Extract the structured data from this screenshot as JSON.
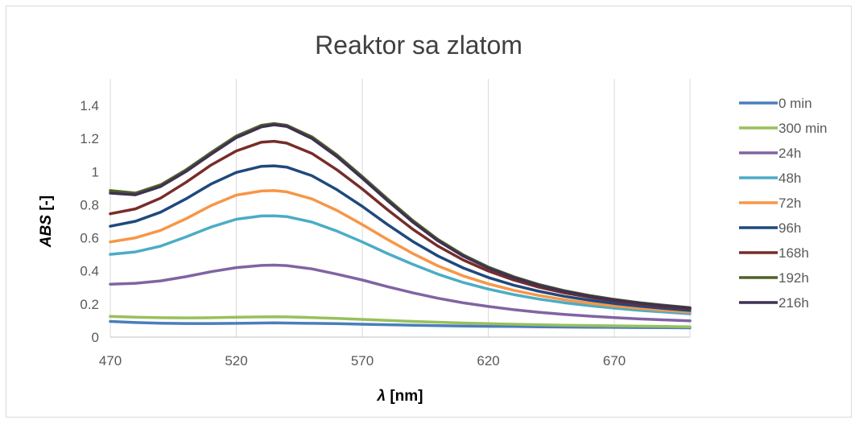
{
  "chart_data": {
    "type": "line",
    "title": "Reaktor sa zlatom",
    "xlabel_symbol": "λ",
    "xlabel_unit": " [nm]",
    "ylabel_symbol": "ABS",
    "ylabel_unit": " [-]",
    "xlim": [
      470,
      700
    ],
    "ylim": [
      0,
      1.4
    ],
    "x_ticks": [
      470,
      520,
      570,
      620,
      670
    ],
    "y_ticks": [
      0,
      0.2,
      0.4,
      0.6,
      0.8,
      1,
      1.2,
      1.4
    ],
    "y_tick_labels": [
      "0",
      "0.2",
      "0.4",
      "0.6",
      "0.8",
      "1",
      "1.2",
      "1.4"
    ],
    "grid": "vertical",
    "legend": "right",
    "x": [
      470,
      480,
      490,
      500,
      510,
      520,
      530,
      535,
      540,
      550,
      560,
      570,
      580,
      590,
      600,
      610,
      620,
      630,
      640,
      650,
      660,
      670,
      680,
      690,
      700
    ],
    "series": [
      {
        "name": "0 min",
        "color": "#4a7ebb",
        "values": [
          0.095,
          0.088,
          0.084,
          0.082,
          0.082,
          0.083,
          0.085,
          0.086,
          0.085,
          0.083,
          0.081,
          0.078,
          0.075,
          0.072,
          0.069,
          0.067,
          0.065,
          0.064,
          0.062,
          0.061,
          0.06,
          0.059,
          0.058,
          0.057,
          0.056
        ]
      },
      {
        "name": "300 min",
        "color": "#98c05c",
        "values": [
          0.125,
          0.12,
          0.117,
          0.116,
          0.117,
          0.12,
          0.122,
          0.123,
          0.122,
          0.118,
          0.113,
          0.107,
          0.101,
          0.095,
          0.09,
          0.085,
          0.081,
          0.078,
          0.075,
          0.072,
          0.07,
          0.068,
          0.066,
          0.064,
          0.062
        ]
      },
      {
        "name": "24h",
        "color": "#8064a2",
        "values": [
          0.32,
          0.325,
          0.34,
          0.365,
          0.395,
          0.42,
          0.433,
          0.435,
          0.432,
          0.412,
          0.38,
          0.345,
          0.305,
          0.268,
          0.235,
          0.207,
          0.185,
          0.166,
          0.15,
          0.137,
          0.127,
          0.118,
          0.11,
          0.104,
          0.098
        ]
      },
      {
        "name": "48h",
        "color": "#4bacc6",
        "values": [
          0.5,
          0.515,
          0.55,
          0.605,
          0.665,
          0.712,
          0.732,
          0.733,
          0.728,
          0.695,
          0.64,
          0.575,
          0.505,
          0.44,
          0.38,
          0.33,
          0.29,
          0.257,
          0.23,
          0.208,
          0.19,
          0.175,
          0.162,
          0.151,
          0.141
        ]
      },
      {
        "name": "72h",
        "color": "#f79646",
        "values": [
          0.575,
          0.6,
          0.645,
          0.715,
          0.795,
          0.858,
          0.883,
          0.885,
          0.878,
          0.835,
          0.765,
          0.68,
          0.59,
          0.505,
          0.43,
          0.37,
          0.322,
          0.283,
          0.252,
          0.226,
          0.205,
          0.188,
          0.174,
          0.162,
          0.151
        ]
      },
      {
        "name": "96h",
        "color": "#1f497d",
        "values": [
          0.67,
          0.7,
          0.755,
          0.835,
          0.925,
          0.995,
          1.032,
          1.035,
          1.027,
          0.975,
          0.89,
          0.79,
          0.68,
          0.578,
          0.49,
          0.418,
          0.36,
          0.314,
          0.277,
          0.247,
          0.223,
          0.203,
          0.187,
          0.173,
          0.161
        ]
      },
      {
        "name": "168h",
        "color": "#772c2a",
        "values": [
          0.745,
          0.775,
          0.84,
          0.935,
          1.04,
          1.125,
          1.178,
          1.183,
          1.172,
          1.11,
          1.01,
          0.895,
          0.77,
          0.652,
          0.55,
          0.466,
          0.399,
          0.345,
          0.302,
          0.268,
          0.241,
          0.218,
          0.2,
          0.184,
          0.171
        ]
      },
      {
        "name": "192h",
        "color": "#4f6228",
        "values": [
          0.885,
          0.87,
          0.92,
          1.01,
          1.115,
          1.215,
          1.28,
          1.29,
          1.28,
          1.21,
          1.1,
          0.97,
          0.835,
          0.705,
          0.59,
          0.497,
          0.423,
          0.365,
          0.318,
          0.281,
          0.252,
          0.228,
          0.208,
          0.192,
          0.178
        ]
      },
      {
        "name": "216h",
        "color": "#3f3151",
        "values": [
          0.87,
          0.86,
          0.91,
          1.0,
          1.105,
          1.205,
          1.27,
          1.283,
          1.273,
          1.2,
          1.09,
          0.96,
          0.825,
          0.695,
          0.582,
          0.49,
          0.417,
          0.36,
          0.313,
          0.277,
          0.248,
          0.224,
          0.205,
          0.189,
          0.175
        ]
      }
    ]
  }
}
